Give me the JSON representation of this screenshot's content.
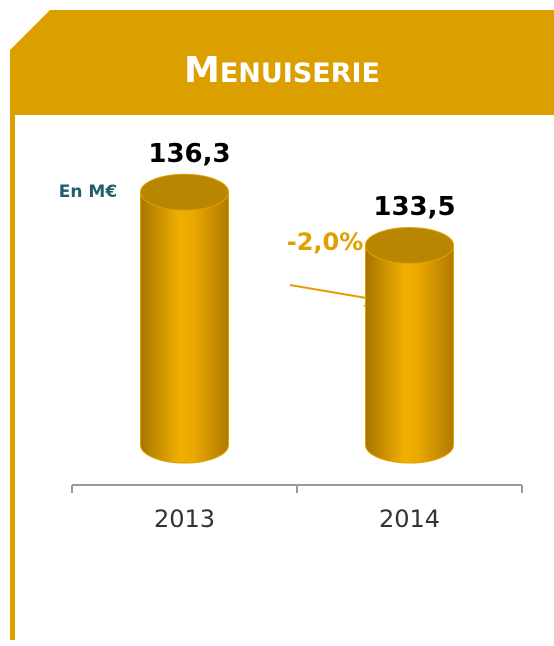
{
  "chart_data": {
    "type": "bar",
    "title": "MENUISERIE",
    "unit_label": "En M€",
    "annotation": "-2,0%",
    "categories": [
      "2013",
      "2014"
    ],
    "values": [
      136.3,
      133.5
    ],
    "value_labels": [
      "136,3",
      "133,5"
    ],
    "color": "#e0a200",
    "ylim": [
      123,
      140
    ]
  }
}
